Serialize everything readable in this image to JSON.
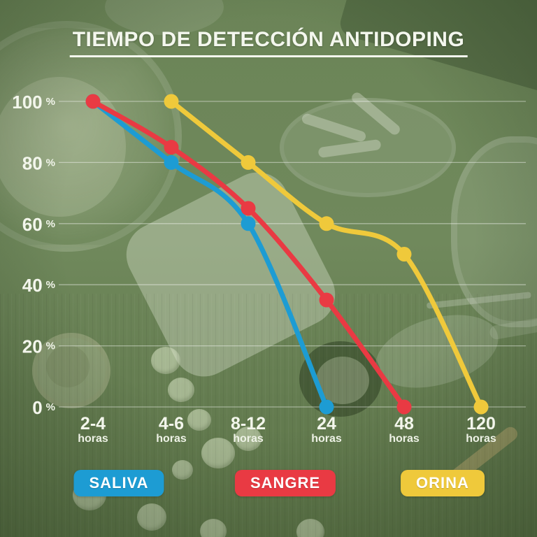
{
  "chart_data": {
    "type": "line",
    "title": "TIEMPO DE DETECCIÓN ANTIDOPING",
    "categories": [
      "2-4",
      "4-6",
      "8-12",
      "24",
      "48",
      "120"
    ],
    "x_sublabel": "horas",
    "yticks": [
      0,
      20,
      40,
      60,
      80,
      100
    ],
    "ytick_suffix": "%",
    "ylim": [
      0,
      100
    ],
    "grid": "horizontal",
    "legend_position": "bottom",
    "background_tint": "#6e875b",
    "series": [
      {
        "name": "SALIVA",
        "color": "#1d9cd3",
        "values": [
          100,
          80,
          60,
          0,
          null,
          null
        ]
      },
      {
        "name": "SANGRE",
        "color": "#e93a43",
        "values": [
          100,
          85,
          65,
          35,
          0,
          null
        ]
      },
      {
        "name": "ORINA",
        "color": "#efc93b",
        "values": [
          null,
          100,
          80,
          60,
          50,
          0
        ]
      }
    ]
  }
}
